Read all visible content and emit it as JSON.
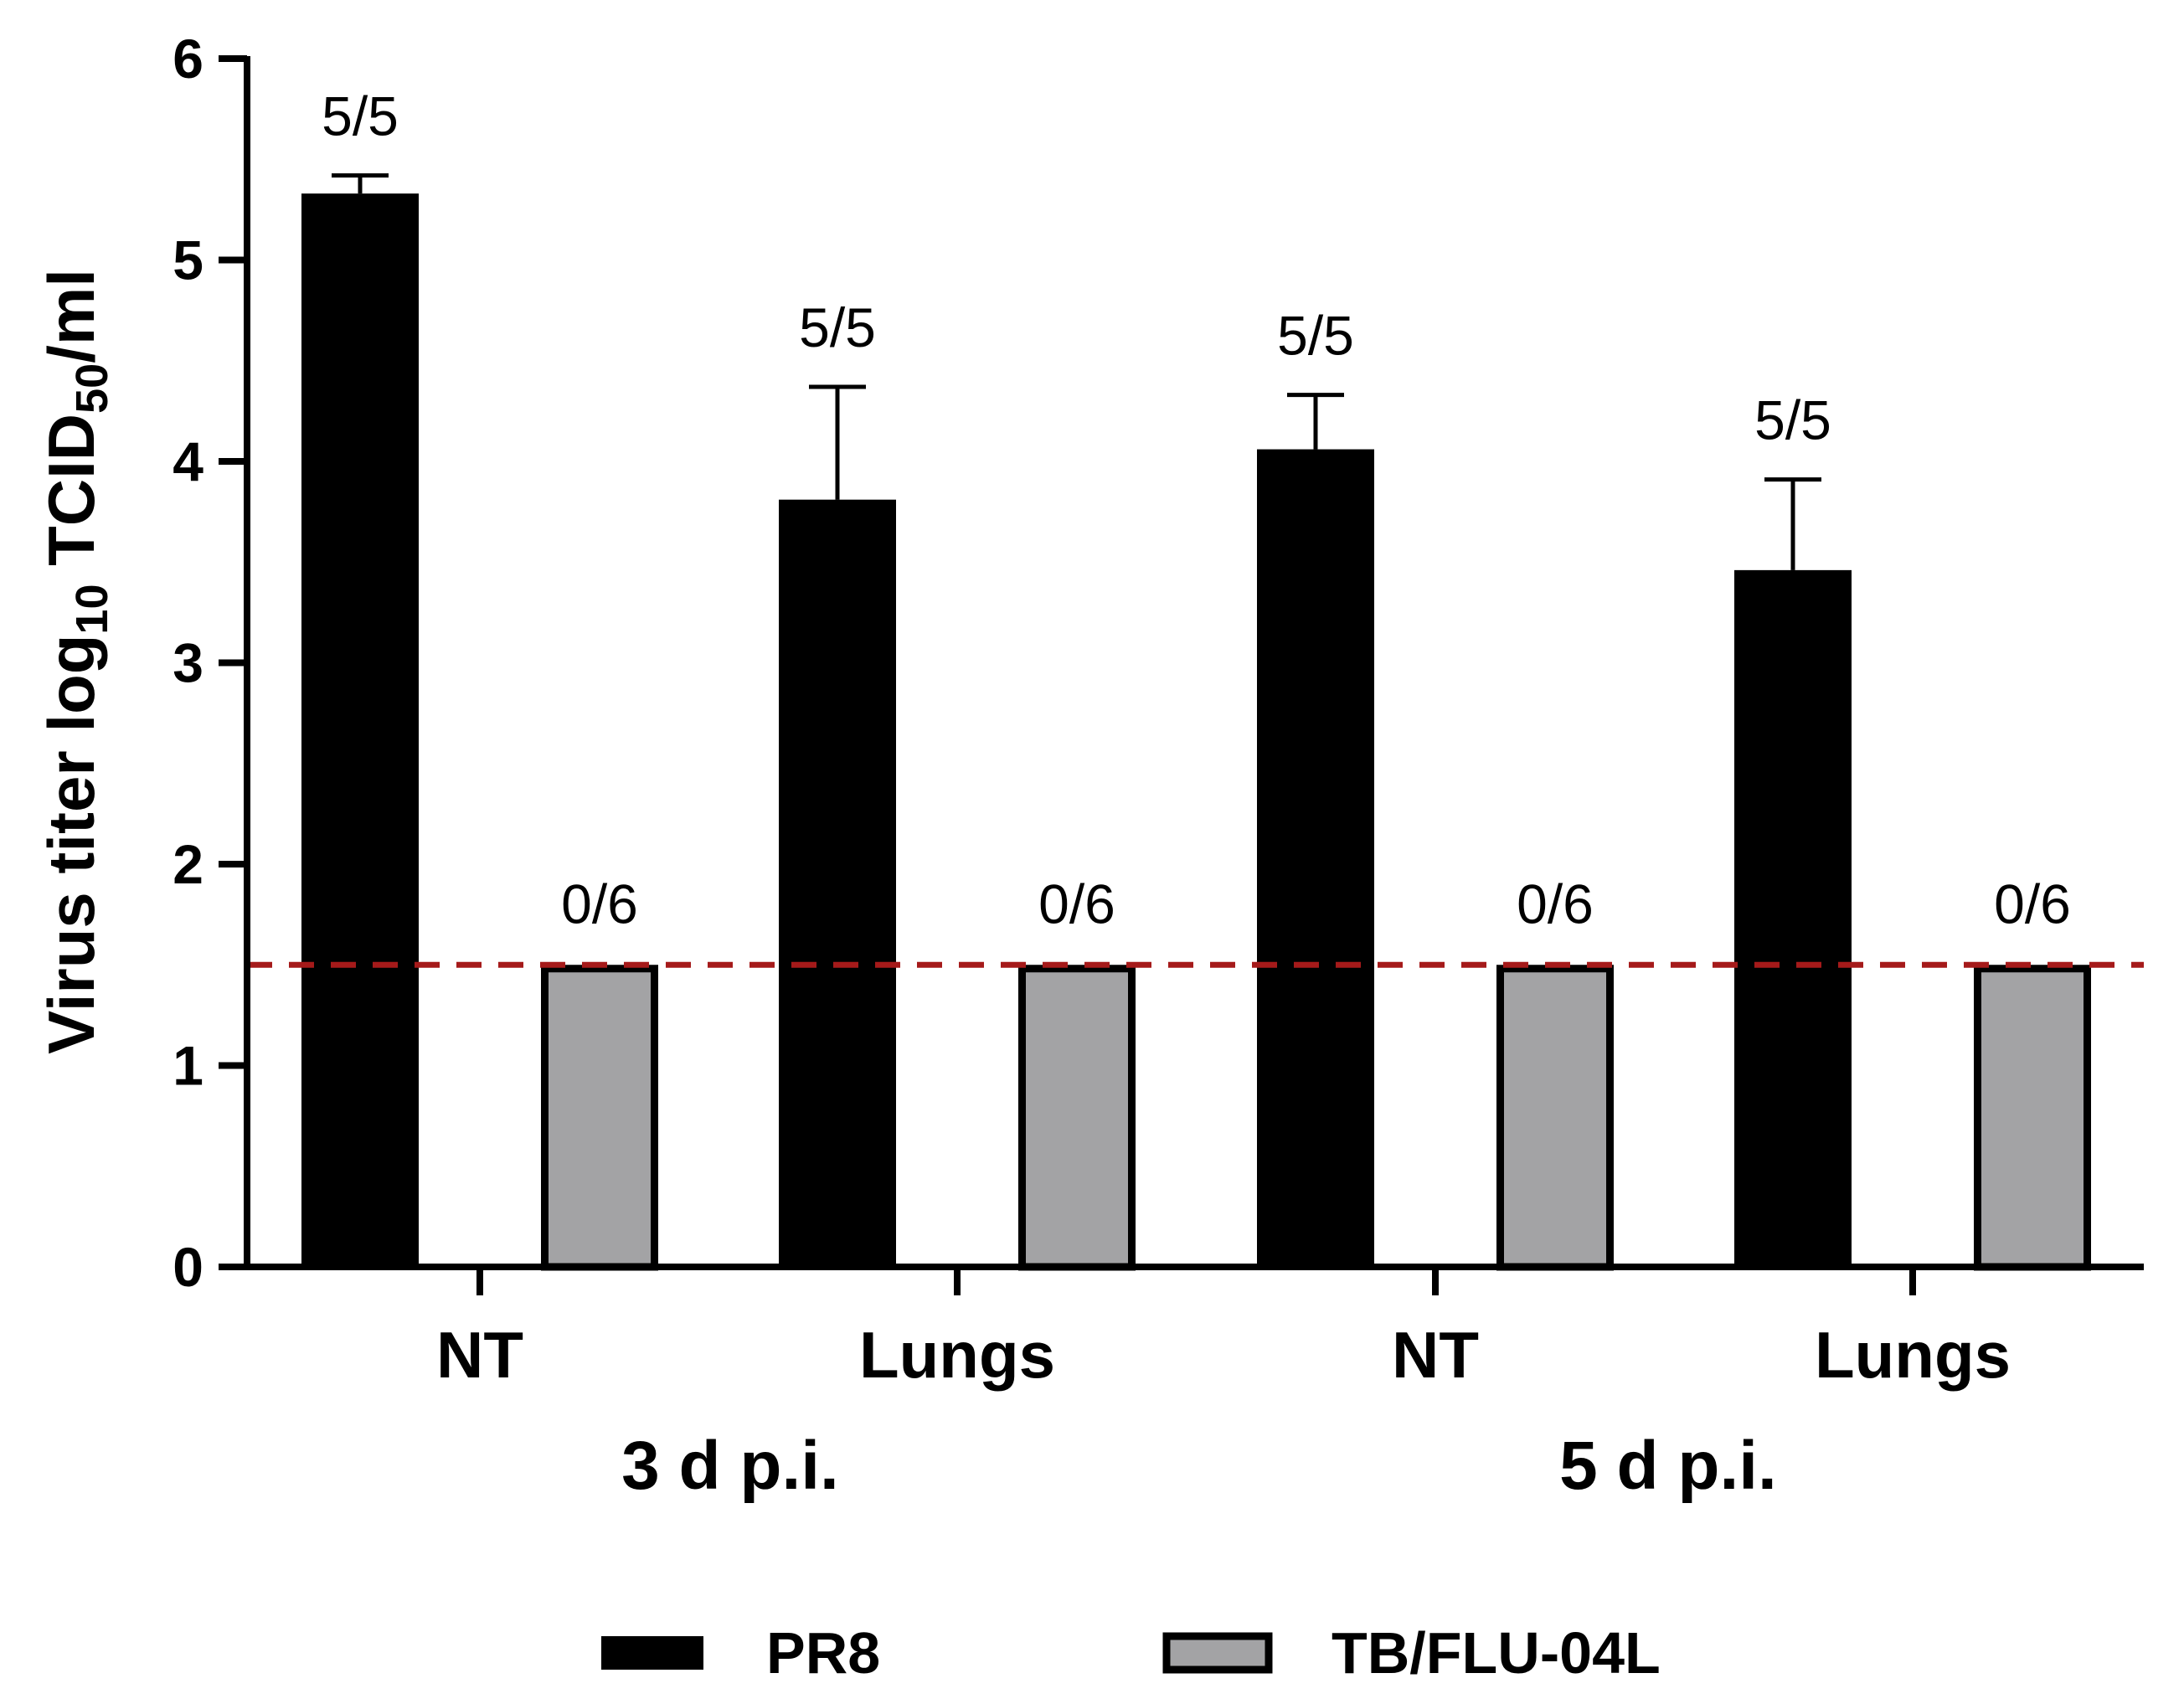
{
  "chart_data": {
    "type": "bar",
    "ylabel": {
      "prefix": "Virus titer log",
      "sub1": "10",
      "mid": " TCID",
      "sub2": "50",
      "suffix": "/ml"
    },
    "ylim": [
      0,
      6
    ],
    "yticks": [
      "0",
      "1",
      "2",
      "3",
      "4",
      "5",
      "6"
    ],
    "categories": [
      "NT",
      "Lungs",
      "NT",
      "Lungs"
    ],
    "groups": [
      {
        "label": "3 d p.i.",
        "categories": [
          0,
          1
        ]
      },
      {
        "label": "5 d p.i.",
        "categories": [
          2,
          3
        ]
      }
    ],
    "series": [
      {
        "name": "PR8",
        "color": "#000000",
        "values": [
          5.33,
          3.81,
          4.06,
          3.46
        ],
        "errors": [
          0.09,
          0.56,
          0.27,
          0.45
        ],
        "ratios": [
          "5/5",
          "5/5",
          "5/5",
          "5/5"
        ]
      },
      {
        "name": "TB/FLU-04L",
        "color": "#a3a3a5",
        "values": [
          1.5,
          1.5,
          1.5,
          1.5
        ],
        "errors": [
          0,
          0,
          0,
          0
        ],
        "ratios": [
          "0/6",
          "0/6",
          "0/6",
          "0/6"
        ]
      }
    ],
    "reference_line": {
      "y": 1.5,
      "color": "#a51a1a",
      "style": "dashed"
    },
    "grid": false,
    "legend_position": "bottom"
  }
}
